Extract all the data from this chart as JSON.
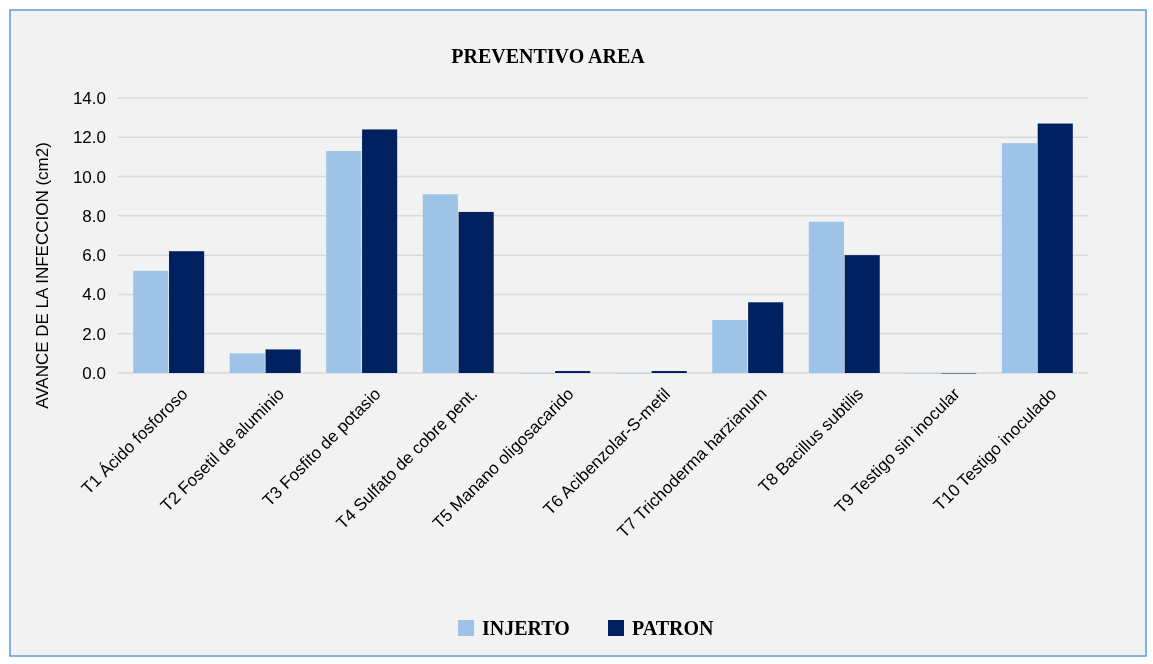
{
  "chart_data": {
    "type": "bar",
    "title": "PREVENTIVO AREA",
    "ylabel": "AVANCE DE LA INFECCION (cm2)",
    "categories": [
      "T1 Ácido fosforoso",
      "T2 Fosetil de aluminio",
      "T3 Fosfito de potasio",
      "T4 Sulfato de cobre pent.",
      "T5 Manano oligosacarido",
      "T6 Acibenzolar-S-metil",
      "T7 Trichoderma harzianum",
      "T8 Bacillus subtilis",
      "T9 Testigo sin inocular",
      "T10 Testigo inoculado"
    ],
    "series": [
      {
        "name": "INJERTO",
        "color": "#9dc3e6",
        "values": [
          5.2,
          1.0,
          11.3,
          9.1,
          0,
          0,
          2.7,
          7.7,
          0,
          11.7
        ]
      },
      {
        "name": "PATRON",
        "color": "#002060",
        "values": [
          6.2,
          1.2,
          12.4,
          8.2,
          0.1,
          0.1,
          3.6,
          6.0,
          0,
          12.7
        ]
      }
    ],
    "ylim": [
      0,
      14
    ],
    "yticks": [
      {
        "value": 0,
        "label": "0.0"
      },
      {
        "value": 2,
        "label": "2.0"
      },
      {
        "value": 4,
        "label": "4.0"
      },
      {
        "value": 6,
        "label": "6.0"
      },
      {
        "value": 8,
        "label": "8.0"
      },
      {
        "value": 10,
        "label": "10.0"
      },
      {
        "value": 12,
        "label": "12.0"
      },
      {
        "value": 14,
        "label": "14.0"
      }
    ],
    "grid": "y",
    "legend": "bottom"
  }
}
